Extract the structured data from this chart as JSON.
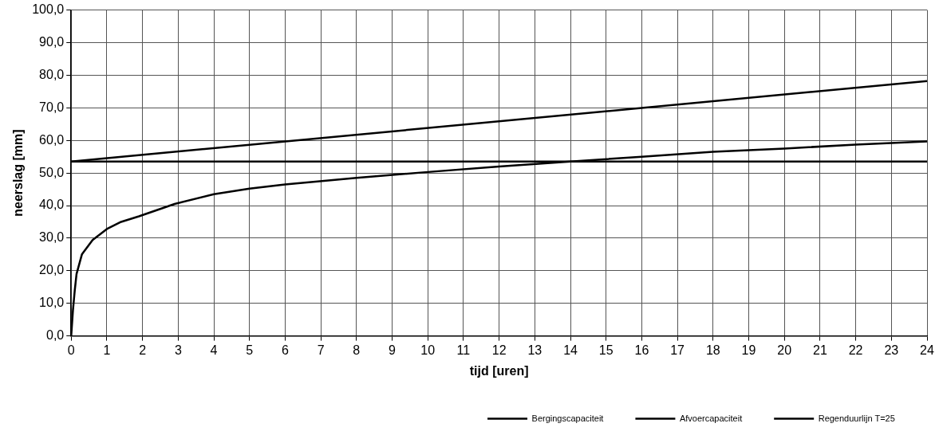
{
  "chart_data": {
    "type": "line",
    "xlabel": "tijd [uren]",
    "ylabel": "neerslag [mm]",
    "xlim": [
      0,
      24
    ],
    "xticks": [
      0,
      1,
      2,
      3,
      4,
      5,
      6,
      7,
      8,
      9,
      10,
      11,
      12,
      13,
      14,
      15,
      16,
      17,
      18,
      19,
      20,
      21,
      22,
      23,
      24
    ],
    "ylim": [
      0,
      100
    ],
    "yticks": [
      {
        "value": 0,
        "label": "0,0"
      },
      {
        "value": 10,
        "label": "10,0"
      },
      {
        "value": 20,
        "label": "20,0"
      },
      {
        "value": 30,
        "label": "30,0"
      },
      {
        "value": 40,
        "label": "40,0"
      },
      {
        "value": 50,
        "label": "50,0"
      },
      {
        "value": 60,
        "label": "60,0"
      },
      {
        "value": 70,
        "label": "70,0"
      },
      {
        "value": 80,
        "label": "80,0"
      },
      {
        "value": 90,
        "label": "90,0"
      },
      {
        "value": 100,
        "label": "100,0"
      }
    ],
    "grid": true,
    "legend": "bottom right",
    "marker": "none",
    "line_style": "solid",
    "series": [
      {
        "name": "Bergingscapaciteit",
        "color": "#000000",
        "x": [
          0,
          24
        ],
        "values": [
          53.5,
          53.5
        ]
      },
      {
        "name": "Afvoercapaciteit",
        "color": "#000000",
        "x": [
          0,
          24
        ],
        "values": [
          53.5,
          78.2
        ]
      },
      {
        "name": "Regenduurlijn T=25",
        "color": "#000000",
        "x": [
          0,
          0.05,
          0.1,
          0.15,
          0.3,
          0.6,
          1,
          1.4,
          1.9,
          2.9,
          4,
          5,
          6,
          8,
          10,
          12,
          14,
          16,
          18,
          20,
          22,
          24
        ],
        "values": [
          0,
          8,
          14,
          19,
          25,
          29.4,
          32.8,
          35,
          36.7,
          40.5,
          43.5,
          45.2,
          46.5,
          48.5,
          50.3,
          52,
          53.5,
          55,
          56.5,
          57.5,
          58.7,
          59.7
        ]
      }
    ]
  }
}
